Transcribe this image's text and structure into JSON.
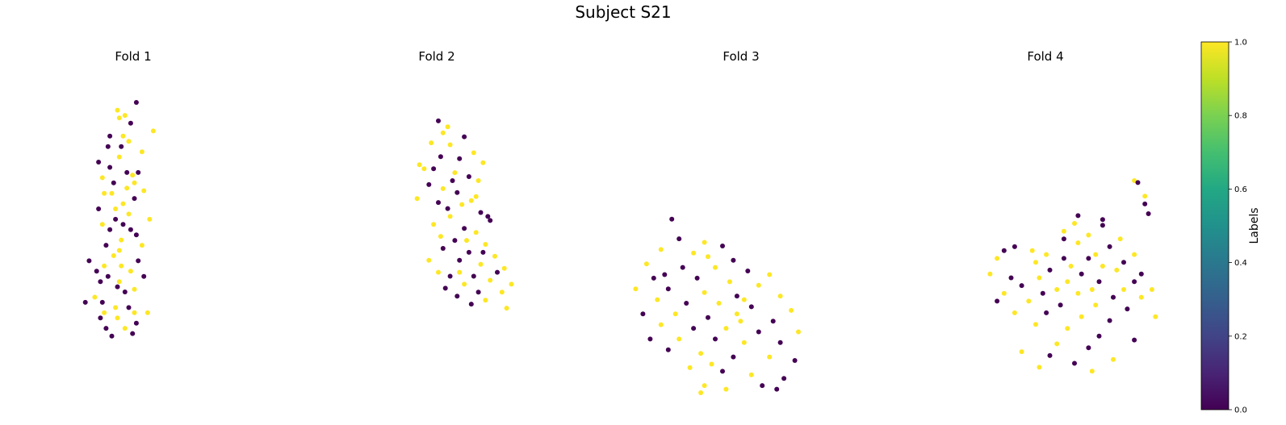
{
  "figure": {
    "suptitle": "Subject S21",
    "colorbar_label": "Labels",
    "colorbar_ticks": [
      "0.0",
      "0.2",
      "0.4",
      "0.6",
      "0.8",
      "1.0"
    ]
  },
  "colors": {
    "label_0": "#440154",
    "label_1": "#fde725"
  },
  "chart_data": [
    {
      "type": "scatter",
      "title": "Fold 1",
      "axes_visible": false,
      "x_range": [
        0,
        100
      ],
      "y_range": [
        0,
        100
      ],
      "color_by": "label",
      "points": [
        [
          64,
          91,
          0
        ],
        [
          44,
          88,
          1
        ],
        [
          52,
          86,
          1
        ],
        [
          46,
          85,
          1
        ],
        [
          58,
          83,
          0
        ],
        [
          82,
          80,
          1
        ],
        [
          34,
          74,
          0
        ],
        [
          48,
          74,
          0
        ],
        [
          46,
          70,
          1
        ],
        [
          24,
          68,
          0
        ],
        [
          36,
          66,
          0
        ],
        [
          66,
          64,
          0
        ],
        [
          60,
          63,
          1
        ],
        [
          40,
          60,
          0
        ],
        [
          54,
          58,
          1
        ],
        [
          72,
          57,
          1
        ],
        [
          30,
          56,
          1
        ],
        [
          62,
          54,
          0
        ],
        [
          50,
          52,
          1
        ],
        [
          42,
          50,
          1
        ],
        [
          56,
          48,
          1
        ],
        [
          78,
          46,
          1
        ],
        [
          28,
          44,
          1
        ],
        [
          36,
          42,
          0
        ],
        [
          64,
          40,
          0
        ],
        [
          48,
          38,
          1
        ],
        [
          32,
          36,
          0
        ],
        [
          46,
          34,
          1
        ],
        [
          40,
          32,
          1
        ],
        [
          14,
          30,
          0
        ],
        [
          30,
          28,
          1
        ],
        [
          58,
          26,
          1
        ],
        [
          72,
          24,
          0
        ],
        [
          26,
          22,
          0
        ],
        [
          44,
          20,
          0
        ],
        [
          62,
          19,
          1
        ],
        [
          52,
          18,
          0
        ],
        [
          20,
          16,
          1
        ],
        [
          10,
          14,
          0
        ],
        [
          28,
          14,
          0
        ],
        [
          42,
          12,
          1
        ],
        [
          56,
          12,
          0
        ],
        [
          76,
          10,
          1
        ],
        [
          26,
          8,
          0
        ],
        [
          44,
          8,
          1
        ],
        [
          64,
          6,
          0
        ],
        [
          32,
          4,
          0
        ],
        [
          52,
          4,
          1
        ],
        [
          60,
          2,
          0
        ],
        [
          38,
          1,
          0
        ],
        [
          36,
          78,
          0
        ],
        [
          50,
          78,
          1
        ],
        [
          56,
          76,
          1
        ],
        [
          70,
          72,
          1
        ],
        [
          28,
          62,
          1
        ],
        [
          62,
          60,
          1
        ],
        [
          42,
          46,
          0
        ],
        [
          50,
          44,
          0
        ],
        [
          70,
          36,
          1
        ],
        [
          22,
          26,
          0
        ],
        [
          34,
          24,
          0
        ],
        [
          46,
          22,
          1
        ],
        [
          58,
          42,
          0
        ],
        [
          66,
          30,
          0
        ],
        [
          38,
          56,
          1
        ],
        [
          54,
          64,
          0
        ],
        [
          24,
          50,
          0
        ],
        [
          48,
          28,
          1
        ],
        [
          62,
          10,
          1
        ],
        [
          30,
          10,
          1
        ]
      ]
    },
    {
      "type": "scatter",
      "title": "Fold 2",
      "axes_visible": false,
      "x_range": [
        0,
        100
      ],
      "y_range": [
        0,
        100
      ],
      "color_by": "label",
      "points": [
        [
          26,
          96,
          0
        ],
        [
          34,
          93,
          1
        ],
        [
          30,
          90,
          1
        ],
        [
          48,
          88,
          0
        ],
        [
          20,
          85,
          1
        ],
        [
          36,
          84,
          1
        ],
        [
          56,
          80,
          1
        ],
        [
          28,
          78,
          0
        ],
        [
          44,
          77,
          0
        ],
        [
          64,
          75,
          1
        ],
        [
          10,
          74,
          1
        ],
        [
          22,
          72,
          0
        ],
        [
          40,
          70,
          1
        ],
        [
          52,
          68,
          0
        ],
        [
          60,
          66,
          1
        ],
        [
          18,
          64,
          0
        ],
        [
          30,
          62,
          1
        ],
        [
          42,
          60,
          0
        ],
        [
          58,
          58,
          1
        ],
        [
          8,
          57,
          1
        ],
        [
          26,
          55,
          0
        ],
        [
          46,
          54,
          1
        ],
        [
          62,
          50,
          0
        ],
        [
          36,
          48,
          1
        ],
        [
          70,
          46,
          0
        ],
        [
          22,
          44,
          1
        ],
        [
          48,
          42,
          0
        ],
        [
          58,
          40,
          1
        ],
        [
          40,
          36,
          0
        ],
        [
          66,
          34,
          1
        ],
        [
          30,
          32,
          0
        ],
        [
          52,
          30,
          0
        ],
        [
          74,
          28,
          1
        ],
        [
          18,
          26,
          1
        ],
        [
          44,
          26,
          0
        ],
        [
          62,
          24,
          1
        ],
        [
          82,
          22,
          1
        ],
        [
          26,
          20,
          1
        ],
        [
          36,
          18,
          0
        ],
        [
          56,
          18,
          0
        ],
        [
          70,
          16,
          1
        ],
        [
          48,
          14,
          1
        ],
        [
          88,
          14,
          1
        ],
        [
          32,
          12,
          0
        ],
        [
          60,
          10,
          0
        ],
        [
          80,
          10,
          1
        ],
        [
          42,
          8,
          0
        ],
        [
          66,
          6,
          1
        ],
        [
          54,
          4,
          0
        ],
        [
          84,
          2,
          1
        ],
        [
          14,
          72,
          1
        ],
        [
          38,
          66,
          0
        ],
        [
          34,
          52,
          0
        ],
        [
          54,
          56,
          1
        ],
        [
          68,
          48,
          0
        ],
        [
          28,
          38,
          1
        ],
        [
          50,
          36,
          1
        ],
        [
          64,
          30,
          0
        ],
        [
          44,
          20,
          1
        ],
        [
          76,
          20,
          0
        ]
      ]
    },
    {
      "type": "scatter",
      "title": "Fold 3",
      "axes_visible": false,
      "x_range": [
        0,
        100
      ],
      "y_range": [
        0,
        100
      ],
      "color_by": "label",
      "points": [
        [
          26,
          97,
          0
        ],
        [
          30,
          86,
          0
        ],
        [
          44,
          84,
          1
        ],
        [
          54,
          82,
          0
        ],
        [
          20,
          80,
          1
        ],
        [
          38,
          78,
          1
        ],
        [
          46,
          76,
          1
        ],
        [
          60,
          74,
          0
        ],
        [
          12,
          72,
          1
        ],
        [
          32,
          70,
          0
        ],
        [
          50,
          70,
          1
        ],
        [
          68,
          68,
          0
        ],
        [
          80,
          66,
          1
        ],
        [
          16,
          64,
          0
        ],
        [
          40,
          64,
          0
        ],
        [
          58,
          62,
          1
        ],
        [
          74,
          60,
          1
        ],
        [
          6,
          58,
          1
        ],
        [
          24,
          58,
          0
        ],
        [
          44,
          56,
          1
        ],
        [
          62,
          54,
          0
        ],
        [
          86,
          54,
          1
        ],
        [
          18,
          52,
          1
        ],
        [
          34,
          50,
          0
        ],
        [
          52,
          50,
          1
        ],
        [
          70,
          48,
          0
        ],
        [
          92,
          46,
          1
        ],
        [
          10,
          44,
          0
        ],
        [
          28,
          44,
          1
        ],
        [
          46,
          42,
          0
        ],
        [
          64,
          40,
          1
        ],
        [
          82,
          40,
          0
        ],
        [
          20,
          38,
          1
        ],
        [
          38,
          36,
          0
        ],
        [
          56,
          36,
          1
        ],
        [
          74,
          34,
          0
        ],
        [
          96,
          34,
          1
        ],
        [
          14,
          30,
          0
        ],
        [
          30,
          30,
          1
        ],
        [
          50,
          30,
          0
        ],
        [
          66,
          28,
          1
        ],
        [
          86,
          28,
          0
        ],
        [
          24,
          24,
          0
        ],
        [
          42,
          22,
          1
        ],
        [
          60,
          20,
          0
        ],
        [
          80,
          20,
          1
        ],
        [
          94,
          18,
          0
        ],
        [
          36,
          14,
          1
        ],
        [
          54,
          12,
          0
        ],
        [
          70,
          10,
          1
        ],
        [
          88,
          8,
          0
        ],
        [
          44,
          4,
          1
        ],
        [
          76,
          4,
          0
        ],
        [
          56,
          2,
          1
        ],
        [
          84,
          2,
          0
        ],
        [
          42,
          0,
          1
        ],
        [
          22,
          66,
          0
        ],
        [
          62,
          44,
          1
        ],
        [
          48,
          16,
          1
        ],
        [
          66,
          52,
          1
        ]
      ]
    },
    {
      "type": "scatter",
      "title": "Fold 4",
      "axes_visible": false,
      "x_range": [
        0,
        100
      ],
      "y_range": [
        0,
        100
      ],
      "color_by": "label",
      "points": [
        [
          84,
          100,
          1
        ],
        [
          86,
          99,
          0
        ],
        [
          90,
          92,
          1
        ],
        [
          90,
          88,
          0
        ],
        [
          92,
          83,
          0
        ],
        [
          52,
          82,
          0
        ],
        [
          66,
          80,
          0
        ],
        [
          50,
          78,
          1
        ],
        [
          66,
          77,
          0
        ],
        [
          44,
          74,
          1
        ],
        [
          58,
          72,
          1
        ],
        [
          76,
          70,
          1
        ],
        [
          44,
          70,
          0
        ],
        [
          52,
          68,
          1
        ],
        [
          70,
          66,
          0
        ],
        [
          16,
          66,
          0
        ],
        [
          10,
          64,
          0
        ],
        [
          26,
          64,
          1
        ],
        [
          34,
          62,
          1
        ],
        [
          62,
          62,
          1
        ],
        [
          84,
          62,
          1
        ],
        [
          6,
          60,
          1
        ],
        [
          44,
          60,
          0
        ],
        [
          58,
          60,
          0
        ],
        [
          78,
          58,
          0
        ],
        [
          28,
          58,
          1
        ],
        [
          48,
          56,
          1
        ],
        [
          66,
          56,
          1
        ],
        [
          36,
          54,
          0
        ],
        [
          74,
          54,
          1
        ],
        [
          2,
          52,
          1
        ],
        [
          54,
          52,
          0
        ],
        [
          88,
          52,
          0
        ],
        [
          14,
          50,
          0
        ],
        [
          30,
          50,
          1
        ],
        [
          46,
          48,
          1
        ],
        [
          64,
          48,
          0
        ],
        [
          84,
          48,
          0
        ],
        [
          20,
          46,
          0
        ],
        [
          40,
          44,
          1
        ],
        [
          60,
          44,
          1
        ],
        [
          78,
          44,
          1
        ],
        [
          94,
          44,
          1
        ],
        [
          10,
          42,
          1
        ],
        [
          32,
          42,
          0
        ],
        [
          52,
          42,
          1
        ],
        [
          72,
          40,
          0
        ],
        [
          88,
          40,
          1
        ],
        [
          6,
          38,
          0
        ],
        [
          24,
          38,
          1
        ],
        [
          42,
          36,
          0
        ],
        [
          62,
          36,
          1
        ],
        [
          80,
          34,
          0
        ],
        [
          16,
          32,
          1
        ],
        [
          34,
          32,
          0
        ],
        [
          54,
          30,
          1
        ],
        [
          70,
          28,
          0
        ],
        [
          28,
          26,
          1
        ],
        [
          46,
          24,
          1
        ],
        [
          64,
          20,
          0
        ],
        [
          84,
          18,
          0
        ],
        [
          40,
          16,
          1
        ],
        [
          58,
          14,
          0
        ],
        [
          20,
          12,
          1
        ],
        [
          36,
          10,
          0
        ],
        [
          72,
          8,
          1
        ],
        [
          50,
          6,
          0
        ],
        [
          30,
          4,
          1
        ],
        [
          60,
          2,
          1
        ],
        [
          96,
          30,
          1
        ]
      ]
    }
  ]
}
